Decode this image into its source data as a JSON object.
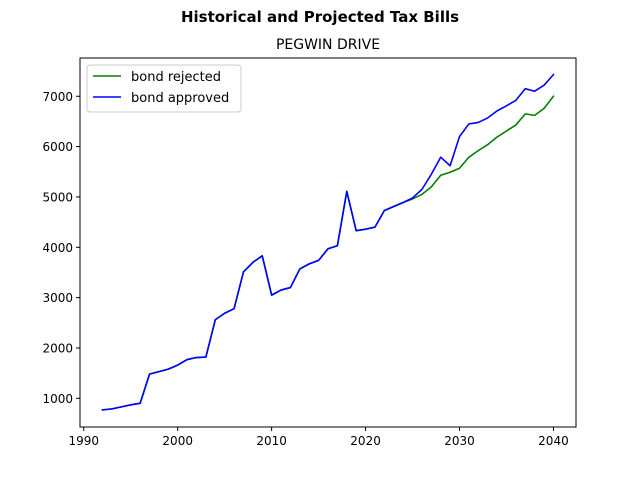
{
  "suptitle": "Historical and Projected Tax Bills",
  "chart_data": {
    "type": "line",
    "title": "PEGWIN DRIVE",
    "xlabel": "",
    "ylabel": "",
    "xlim": [
      1989.6,
      2042.4
    ],
    "ylim": [
      430,
      7760
    ],
    "xticks": [
      1990,
      2000,
      2010,
      2020,
      2030,
      2040
    ],
    "yticks": [
      1000,
      2000,
      3000,
      4000,
      5000,
      6000,
      7000
    ],
    "grid": false,
    "legend": "top-left",
    "series": [
      {
        "name": "bond rejected",
        "color": "#008000",
        "points": [
          [
            1992,
            770
          ],
          [
            1993,
            790
          ],
          [
            1994,
            830
          ],
          [
            1995,
            870
          ],
          [
            1996,
            900
          ],
          [
            1997,
            1480
          ],
          [
            1998,
            1530
          ],
          [
            1999,
            1580
          ],
          [
            2000,
            1660
          ],
          [
            2001,
            1770
          ],
          [
            2002,
            1810
          ],
          [
            2003,
            1820
          ],
          [
            2004,
            2560
          ],
          [
            2005,
            2690
          ],
          [
            2006,
            2780
          ],
          [
            2007,
            3510
          ],
          [
            2008,
            3700
          ],
          [
            2009,
            3830
          ],
          [
            2010,
            3050
          ],
          [
            2011,
            3150
          ],
          [
            2012,
            3200
          ],
          [
            2013,
            3570
          ],
          [
            2014,
            3670
          ],
          [
            2015,
            3740
          ],
          [
            2016,
            3970
          ],
          [
            2017,
            4030
          ],
          [
            2018,
            5110
          ],
          [
            2019,
            4330
          ],
          [
            2020,
            4360
          ],
          [
            2021,
            4400
          ],
          [
            2022,
            4730
          ],
          [
            2023,
            4810
          ],
          [
            2024,
            4890
          ],
          [
            2025,
            4960
          ],
          [
            2026,
            5050
          ],
          [
            2027,
            5200
          ],
          [
            2028,
            5430
          ],
          [
            2029,
            5490
          ],
          [
            2030,
            5570
          ],
          [
            2031,
            5790
          ],
          [
            2032,
            5920
          ],
          [
            2033,
            6040
          ],
          [
            2034,
            6190
          ],
          [
            2035,
            6310
          ],
          [
            2036,
            6430
          ],
          [
            2037,
            6650
          ],
          [
            2038,
            6620
          ],
          [
            2039,
            6760
          ],
          [
            2040,
            7000
          ]
        ]
      },
      {
        "name": "bond approved",
        "color": "#0000ff",
        "points": [
          [
            1992,
            770
          ],
          [
            1993,
            790
          ],
          [
            1994,
            830
          ],
          [
            1995,
            870
          ],
          [
            1996,
            900
          ],
          [
            1997,
            1480
          ],
          [
            1998,
            1530
          ],
          [
            1999,
            1580
          ],
          [
            2000,
            1660
          ],
          [
            2001,
            1770
          ],
          [
            2002,
            1810
          ],
          [
            2003,
            1820
          ],
          [
            2004,
            2560
          ],
          [
            2005,
            2690
          ],
          [
            2006,
            2780
          ],
          [
            2007,
            3510
          ],
          [
            2008,
            3700
          ],
          [
            2009,
            3830
          ],
          [
            2010,
            3050
          ],
          [
            2011,
            3150
          ],
          [
            2012,
            3200
          ],
          [
            2013,
            3570
          ],
          [
            2014,
            3670
          ],
          [
            2015,
            3740
          ],
          [
            2016,
            3970
          ],
          [
            2017,
            4030
          ],
          [
            2018,
            5110
          ],
          [
            2019,
            4330
          ],
          [
            2020,
            4360
          ],
          [
            2021,
            4400
          ],
          [
            2022,
            4730
          ],
          [
            2023,
            4810
          ],
          [
            2024,
            4890
          ],
          [
            2025,
            4980
          ],
          [
            2026,
            5150
          ],
          [
            2027,
            5450
          ],
          [
            2028,
            5790
          ],
          [
            2029,
            5620
          ],
          [
            2030,
            6200
          ],
          [
            2031,
            6450
          ],
          [
            2032,
            6480
          ],
          [
            2033,
            6570
          ],
          [
            2034,
            6710
          ],
          [
            2035,
            6810
          ],
          [
            2036,
            6920
          ],
          [
            2037,
            7150
          ],
          [
            2038,
            7100
          ],
          [
            2039,
            7220
          ],
          [
            2040,
            7430
          ]
        ]
      }
    ]
  }
}
